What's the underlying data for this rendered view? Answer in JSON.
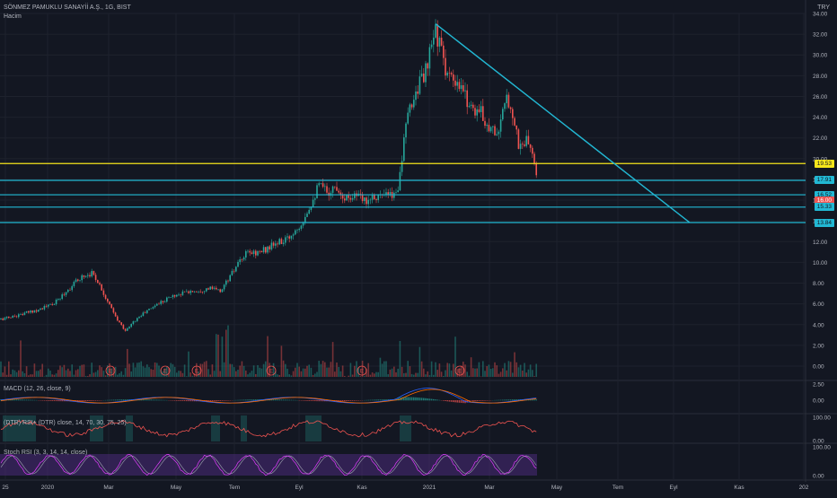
{
  "header": {
    "symbol_line": "SÖNMEZ PAMUKLU SANAYİİ A.Ş., 1G, BIST",
    "volume_label": "Hacim",
    "currency": "TRY"
  },
  "colors": {
    "background": "#131722",
    "grid": "#1e222d",
    "up": "#26a69a",
    "down": "#ef5350",
    "level_line": "#22b8d4",
    "yellow_level": "#f5e51b",
    "macd_line": "#2962ff",
    "signal_line": "#ff6d00",
    "stoch_k": "#e040fb",
    "stoch_d": "#cfd8dc",
    "rsi_band": "#4a2a7a"
  },
  "chart_data": {
    "type": "candlestick",
    "price_axis": {
      "ticks": [
        "34.00",
        "32.00",
        "30.00",
        "28.00",
        "26.00",
        "24.00",
        "22.00",
        "20.00",
        "18.00",
        "16.00",
        "14.00",
        "12.00",
        "10.00",
        "8.00",
        "6.00",
        "4.00",
        "2.00",
        "0.00"
      ],
      "range": [
        0,
        34
      ]
    },
    "time_axis": {
      "labels": [
        "25",
        "2020",
        "Mar",
        "May",
        "Tem",
        "Eyl",
        "Kas",
        "2021",
        "Mar",
        "May",
        "Tem",
        "Eyl",
        "Kas",
        "202"
      ]
    },
    "price_path": [
      [
        0,
        4.5
      ],
      [
        20,
        4.9
      ],
      [
        40,
        5.4
      ],
      [
        60,
        6.0
      ],
      [
        75,
        7.3
      ],
      [
        90,
        8.6
      ],
      [
        103,
        9.0
      ],
      [
        110,
        8.0
      ],
      [
        120,
        6.2
      ],
      [
        130,
        4.5
      ],
      [
        140,
        3.4
      ],
      [
        150,
        4.4
      ],
      [
        160,
        5.1
      ],
      [
        175,
        6.0
      ],
      [
        190,
        6.7
      ],
      [
        205,
        7.1
      ],
      [
        220,
        7.3
      ],
      [
        235,
        7.5
      ],
      [
        245,
        7.2
      ],
      [
        255,
        8.5
      ],
      [
        265,
        9.8
      ],
      [
        275,
        10.9
      ],
      [
        290,
        11.0
      ],
      [
        305,
        11.7
      ],
      [
        320,
        12.2
      ],
      [
        335,
        13.8
      ],
      [
        345,
        15.5
      ],
      [
        355,
        17.4
      ],
      [
        365,
        16.8
      ],
      [
        375,
        17.3
      ],
      [
        385,
        16.2
      ],
      [
        395,
        16.6
      ],
      [
        405,
        15.9
      ],
      [
        415,
        16.5
      ],
      [
        425,
        16.4
      ],
      [
        435,
        16.4
      ],
      [
        442,
        16.7
      ],
      [
        448,
        20.5
      ],
      [
        455,
        24.5
      ],
      [
        465,
        27.0
      ],
      [
        475,
        28.5
      ],
      [
        485,
        32.5
      ],
      [
        495,
        29.0
      ],
      [
        505,
        27.0
      ],
      [
        515,
        26.5
      ],
      [
        525,
        25.0
      ],
      [
        535,
        24.5
      ],
      [
        545,
        23.0
      ],
      [
        555,
        22.5
      ],
      [
        565,
        26.0
      ],
      [
        572,
        24.0
      ],
      [
        578,
        21.0
      ],
      [
        585,
        21.8
      ],
      [
        592,
        21.0
      ],
      [
        598,
        17.6
      ]
    ],
    "levels": [
      {
        "label": "19.53",
        "value": 19.53,
        "color": "yellow"
      },
      {
        "label": "17.91",
        "value": 17.91,
        "color": "cyan"
      },
      {
        "label": "16.52",
        "value": 16.52,
        "color": "cyan"
      },
      {
        "label": "16.00",
        "value": 16.0,
        "color": "red"
      },
      {
        "label": "15.33",
        "value": 15.33,
        "color": "cyan"
      },
      {
        "label": "13.84",
        "value": 13.84,
        "color": "cyan"
      }
    ],
    "trendline": {
      "from_value": 33.0,
      "to_value": 13.84
    },
    "event_markers": [
      "E",
      "E",
      "E",
      "E",
      "E",
      "E"
    ]
  },
  "indicators": {
    "macd": {
      "label": "MACD (12, 26, close, 9)",
      "ticks": [
        "2.50",
        "0.00"
      ]
    },
    "dtrsi": {
      "label": "(DTR) RSI+ (DTR) close, 14, 70, 30, 75, 25)",
      "ticks": [
        "100.00",
        "0.00"
      ]
    },
    "stoch": {
      "label": "Stoch RSI (3, 3, 14, 14, close)",
      "ticks": [
        "100.00",
        "0.00"
      ]
    }
  }
}
